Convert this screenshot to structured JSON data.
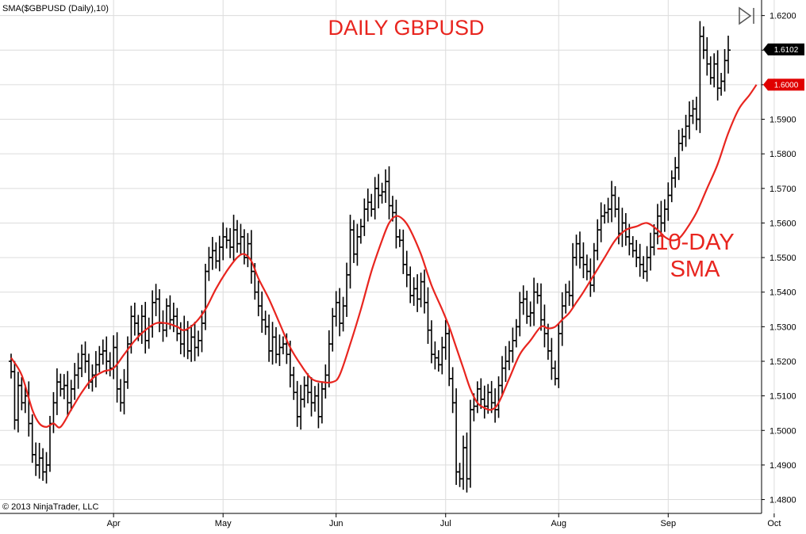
{
  "indicator_label": "SMA($GBPUSD (Daily),10)",
  "copyright": "© 2013 NinjaTrader, LLC",
  "colors": {
    "bars": "#000000",
    "sma": "#e8251f",
    "grid": "#dcdcdc",
    "price_badge": "#000000",
    "sma_badge": "#e00000"
  },
  "price_badge_value": "1.6102",
  "sma_badge_value": "1.6000",
  "chart_data": {
    "type": "ohlc-bar",
    "title": "DAILY GBPUSD",
    "annotation": [
      "10-DAY",
      "SMA"
    ],
    "ylim": [
      1.476,
      1.6245
    ],
    "y_ticks": [
      "1.6200",
      "1.6100",
      "1.6000",
      "1.5900",
      "1.5800",
      "1.5700",
      "1.5600",
      "1.5500",
      "1.5400",
      "1.5300",
      "1.5200",
      "1.5100",
      "1.5000",
      "1.4900",
      "1.4800"
    ],
    "x_ticks": [
      {
        "label": "Apr",
        "index": 29
      },
      {
        "label": "May",
        "index": 60
      },
      {
        "label": "Jun",
        "index": 92
      },
      {
        "label": "Jul",
        "index": 123
      },
      {
        "label": "Aug",
        "index": 155
      },
      {
        "label": "Sep",
        "index": 186
      },
      {
        "label": "Oct",
        "index": 216
      }
    ],
    "grid": true,
    "close": [
      1.517,
      1.503,
      1.513,
      1.508,
      1.51,
      1.502,
      1.493,
      1.49,
      1.492,
      1.488,
      1.49,
      1.502,
      1.508,
      1.514,
      1.512,
      1.513,
      1.508,
      1.512,
      1.516,
      1.518,
      1.522,
      1.52,
      1.514,
      1.516,
      1.519,
      1.522,
      1.523,
      1.52,
      1.518,
      1.524,
      1.512,
      1.508,
      1.514,
      1.525,
      1.533,
      1.531,
      1.528,
      1.533,
      1.526,
      1.53,
      1.537,
      1.538,
      1.531,
      1.529,
      1.536,
      1.532,
      1.533,
      1.528,
      1.525,
      1.529,
      1.523,
      1.527,
      1.524,
      1.526,
      1.531,
      1.546,
      1.55,
      1.552,
      1.549,
      1.553,
      1.556,
      1.555,
      1.553,
      1.558,
      1.554,
      1.556,
      1.55,
      1.554,
      1.546,
      1.54,
      1.536,
      1.532,
      1.53,
      1.523,
      1.527,
      1.522,
      1.524,
      1.525,
      1.522,
      1.516,
      1.511,
      1.504,
      1.509,
      1.513,
      1.511,
      1.508,
      1.51,
      1.504,
      1.512,
      1.516,
      1.525,
      1.533,
      1.537,
      1.531,
      1.536,
      1.545,
      1.558,
      1.551,
      1.556,
      1.559,
      1.564,
      1.566,
      1.564,
      1.57,
      1.568,
      1.569,
      1.572,
      1.565,
      1.563,
      1.556,
      1.555,
      1.548,
      1.545,
      1.539,
      1.541,
      1.538,
      1.543,
      1.537,
      1.529,
      1.522,
      1.521,
      1.519,
      1.524,
      1.528,
      1.515,
      1.508,
      1.488,
      1.486,
      1.495,
      1.486,
      1.506,
      1.507,
      1.512,
      1.509,
      1.507,
      1.511,
      1.508,
      1.506,
      1.513,
      1.518,
      1.52,
      1.523,
      1.526,
      1.53,
      1.537,
      1.538,
      1.533,
      1.534,
      1.54,
      1.539,
      1.532,
      1.528,
      1.523,
      1.518,
      1.515,
      1.528,
      1.536,
      1.54,
      1.539,
      1.55,
      1.554,
      1.55,
      1.548,
      1.546,
      1.542,
      1.552,
      1.558,
      1.562,
      1.563,
      1.564,
      1.568,
      1.564,
      1.557,
      1.56,
      1.556,
      1.554,
      1.552,
      1.55,
      1.548,
      1.546,
      1.55,
      1.553,
      1.557,
      1.562,
      1.56,
      1.564,
      1.568,
      1.573,
      1.576,
      1.583,
      1.585,
      1.588,
      1.591,
      1.593,
      1.59,
      1.614,
      1.61,
      1.606,
      1.602,
      1.606,
      1.599,
      1.601,
      1.607,
      1.61
    ],
    "sma_series": [
      {
        "name": "SMA 10",
        "points": [
          [
            0,
            1.521
          ],
          [
            3,
            1.516
          ],
          [
            6,
            1.506
          ],
          [
            8,
            1.502
          ],
          [
            10,
            1.501
          ],
          [
            12,
            1.502
          ],
          [
            14,
            1.501
          ],
          [
            17,
            1.506
          ],
          [
            20,
            1.511
          ],
          [
            23,
            1.515
          ],
          [
            26,
            1.517
          ],
          [
            29,
            1.518
          ],
          [
            32,
            1.522
          ],
          [
            35,
            1.526
          ],
          [
            38,
            1.529
          ],
          [
            41,
            1.531
          ],
          [
            44,
            1.531
          ],
          [
            47,
            1.53
          ],
          [
            49,
            1.529
          ],
          [
            52,
            1.531
          ],
          [
            55,
            1.535
          ],
          [
            58,
            1.541
          ],
          [
            61,
            1.546
          ],
          [
            64,
            1.55
          ],
          [
            66,
            1.551
          ],
          [
            68,
            1.549
          ],
          [
            70,
            1.544
          ],
          [
            73,
            1.538
          ],
          [
            76,
            1.531
          ],
          [
            79,
            1.524
          ],
          [
            82,
            1.519
          ],
          [
            85,
            1.515
          ],
          [
            88,
            1.514
          ],
          [
            91,
            1.514
          ],
          [
            93,
            1.516
          ],
          [
            96,
            1.525
          ],
          [
            99,
            1.535
          ],
          [
            102,
            1.546
          ],
          [
            105,
            1.555
          ],
          [
            107,
            1.56
          ],
          [
            109,
            1.562
          ],
          [
            111,
            1.561
          ],
          [
            113,
            1.558
          ],
          [
            116,
            1.551
          ],
          [
            119,
            1.542
          ],
          [
            122,
            1.535
          ],
          [
            124,
            1.53
          ],
          [
            126,
            1.524
          ],
          [
            128,
            1.518
          ],
          [
            130,
            1.512
          ],
          [
            132,
            1.508
          ],
          [
            134,
            1.5065
          ],
          [
            136,
            1.506
          ],
          [
            138,
            1.508
          ],
          [
            141,
            1.515
          ],
          [
            144,
            1.522
          ],
          [
            147,
            1.526
          ],
          [
            150,
            1.53
          ],
          [
            152,
            1.5295
          ],
          [
            154,
            1.53
          ],
          [
            156,
            1.532
          ],
          [
            158,
            1.534
          ],
          [
            160,
            1.537
          ],
          [
            162,
            1.54
          ],
          [
            165,
            1.545
          ],
          [
            168,
            1.55
          ],
          [
            171,
            1.555
          ],
          [
            174,
            1.558
          ],
          [
            177,
            1.559
          ],
          [
            180,
            1.56
          ],
          [
            183,
            1.558
          ],
          [
            185,
            1.556
          ],
          [
            187,
            1.555
          ],
          [
            189,
            1.5555
          ],
          [
            191,
            1.558
          ],
          [
            194,
            1.563
          ],
          [
            197,
            1.57
          ],
          [
            200,
            1.577
          ],
          [
            203,
            1.586
          ],
          [
            206,
            1.593
          ],
          [
            209,
            1.597
          ],
          [
            211,
            1.6
          ]
        ]
      }
    ]
  }
}
